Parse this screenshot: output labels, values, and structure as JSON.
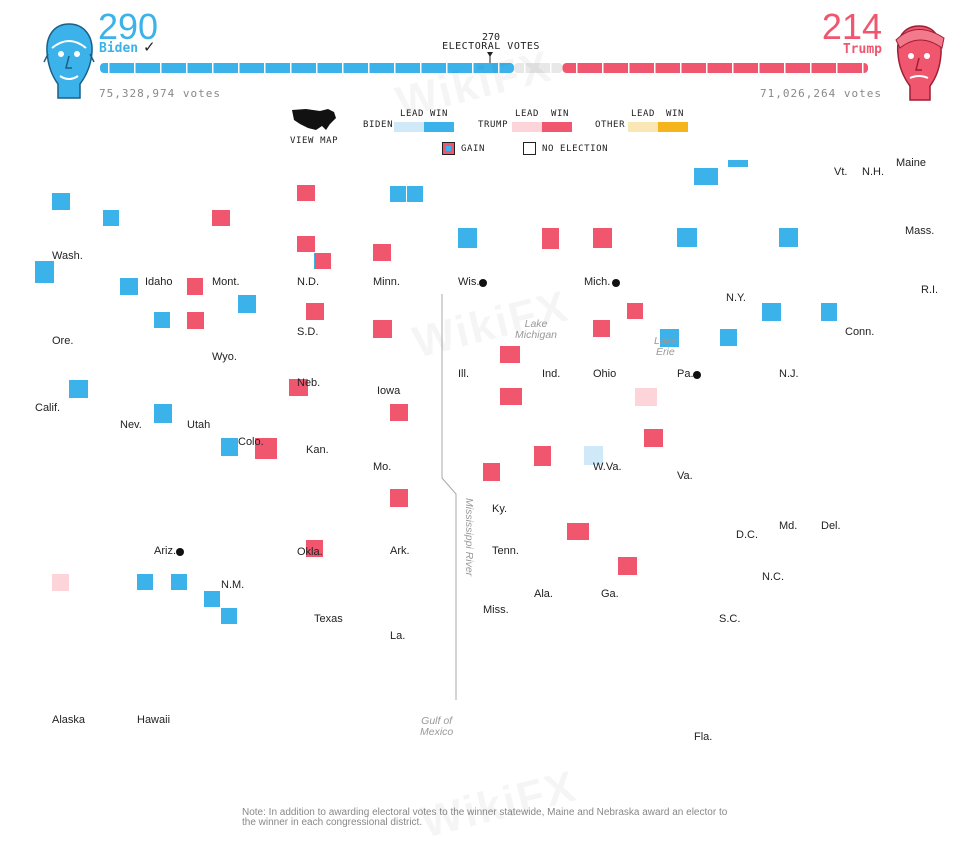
{
  "biden": {
    "count": "290",
    "name": "Biden",
    "check": "✓",
    "votes": "75,328,974 votes",
    "color": "#3bb2ea"
  },
  "trump": {
    "count": "214",
    "name": "Trump",
    "votes": "71,026,264 votes",
    "color": "#f0566e"
  },
  "electoral": {
    "threshold": "270",
    "label": "ELECTORAL VOTES",
    "total": 538
  },
  "legend": {
    "view_map": "VIEW MAP",
    "biden": "BIDEN",
    "trump": "TRUMP",
    "other": "OTHER",
    "lead": "LEAD",
    "win": "WIN",
    "gain": "GAIN",
    "no_election": "NO ELECTION",
    "colors": {
      "biden_lead": "#cfe9f8",
      "biden_win": "#3bb2ea",
      "trump_lead": "#fcd4da",
      "trump_win": "#f0566e",
      "other_lead": "#fbe6b6",
      "other_win": "#f6b41b"
    }
  },
  "states": [
    {
      "abbr": "Wash.",
      "win": "biden",
      "ev": 12
    },
    {
      "abbr": "Idaho",
      "win": "trump",
      "ev": 4
    },
    {
      "abbr": "Mont.",
      "win": "trump",
      "ev": 3
    },
    {
      "abbr": "N.D.",
      "win": "trump",
      "ev": 3
    },
    {
      "abbr": "Minn.",
      "win": "biden",
      "ev": 10
    },
    {
      "abbr": "Wis.",
      "win": "biden",
      "ev": 10,
      "flip": true
    },
    {
      "abbr": "Mich.",
      "win": "biden",
      "ev": 16,
      "flip": true
    },
    {
      "abbr": "Vt.",
      "win": "biden",
      "ev": 3
    },
    {
      "abbr": "N.H.",
      "win": "biden",
      "ev": 4
    },
    {
      "abbr": "Maine",
      "win": "biden",
      "ev": 4
    },
    {
      "abbr": "Mass.",
      "win": "biden",
      "ev": 11
    },
    {
      "abbr": "R.I.",
      "win": "biden",
      "ev": 4
    },
    {
      "abbr": "Conn.",
      "win": "biden",
      "ev": 7
    },
    {
      "abbr": "N.Y.",
      "win": "biden",
      "ev": 29
    },
    {
      "abbr": "Ore.",
      "win": "biden",
      "ev": 7
    },
    {
      "abbr": "S.D.",
      "win": "trump",
      "ev": 3
    },
    {
      "abbr": "Wyo.",
      "win": "trump",
      "ev": 3
    },
    {
      "abbr": "Neb.",
      "win": "trump",
      "ev": 5
    },
    {
      "abbr": "Iowa",
      "win": "trump",
      "ev": 6
    },
    {
      "abbr": "Ill.",
      "win": "biden",
      "ev": 20
    },
    {
      "abbr": "Ind.",
      "win": "trump",
      "ev": 11
    },
    {
      "abbr": "Ohio",
      "win": "trump",
      "ev": 18
    },
    {
      "abbr": "Pa.",
      "win": "biden",
      "ev": 20,
      "flip": true
    },
    {
      "abbr": "N.J.",
      "win": "biden",
      "ev": 14
    },
    {
      "abbr": "Calif.",
      "win": "biden",
      "ev": 55
    },
    {
      "abbr": "Nev.",
      "win": "biden",
      "ev": 6
    },
    {
      "abbr": "Utah",
      "win": "trump",
      "ev": 6
    },
    {
      "abbr": "Colo.",
      "win": "biden",
      "ev": 9
    },
    {
      "abbr": "Kan.",
      "win": "trump",
      "ev": 6
    },
    {
      "abbr": "Mo.",
      "win": "trump",
      "ev": 10
    },
    {
      "abbr": "W.Va.",
      "win": "trump",
      "ev": 5
    },
    {
      "abbr": "Va.",
      "win": "biden",
      "ev": 13
    },
    {
      "abbr": "Md.",
      "win": "biden",
      "ev": 10
    },
    {
      "abbr": "Del.",
      "win": "biden",
      "ev": 3
    },
    {
      "abbr": "D.C.",
      "win": "biden",
      "ev": 3
    },
    {
      "abbr": "Ky.",
      "win": "trump",
      "ev": 8
    },
    {
      "abbr": "Tenn.",
      "win": "trump",
      "ev": 11
    },
    {
      "abbr": "N.C.",
      "win": "trump-lead",
      "ev": 15
    },
    {
      "abbr": "Ariz.",
      "win": "biden",
      "ev": 11,
      "flip": true
    },
    {
      "abbr": "N.M.",
      "win": "biden",
      "ev": 5
    },
    {
      "abbr": "Okla.",
      "win": "trump",
      "ev": 7
    },
    {
      "abbr": "Ark.",
      "win": "trump",
      "ev": 6
    },
    {
      "abbr": "Texas",
      "win": "trump",
      "ev": 38
    },
    {
      "abbr": "La.",
      "win": "trump",
      "ev": 8
    },
    {
      "abbr": "Miss.",
      "win": "trump",
      "ev": 6
    },
    {
      "abbr": "Ala.",
      "win": "trump",
      "ev": 9
    },
    {
      "abbr": "Ga.",
      "win": "biden-lead",
      "ev": 16
    },
    {
      "abbr": "S.C.",
      "win": "trump",
      "ev": 9
    },
    {
      "abbr": "Fla.",
      "win": "trump",
      "ev": 29
    },
    {
      "abbr": "Alaska",
      "win": "trump-lead",
      "ev": 3
    },
    {
      "abbr": "Hawaii",
      "win": "biden",
      "ev": 4
    }
  ],
  "geo_labels": {
    "lake_michigan": "Lake\nMichigan",
    "lake_erie": "Lake\nErie",
    "mississippi": "Mississippi River",
    "gulf": "Gulf of\nMexico"
  },
  "note": "Note: In addition to awarding electoral votes to the winner statewide, Maine and Nebraska award an elector to the winner in each congressional district.",
  "watermark": "WikiFX"
}
